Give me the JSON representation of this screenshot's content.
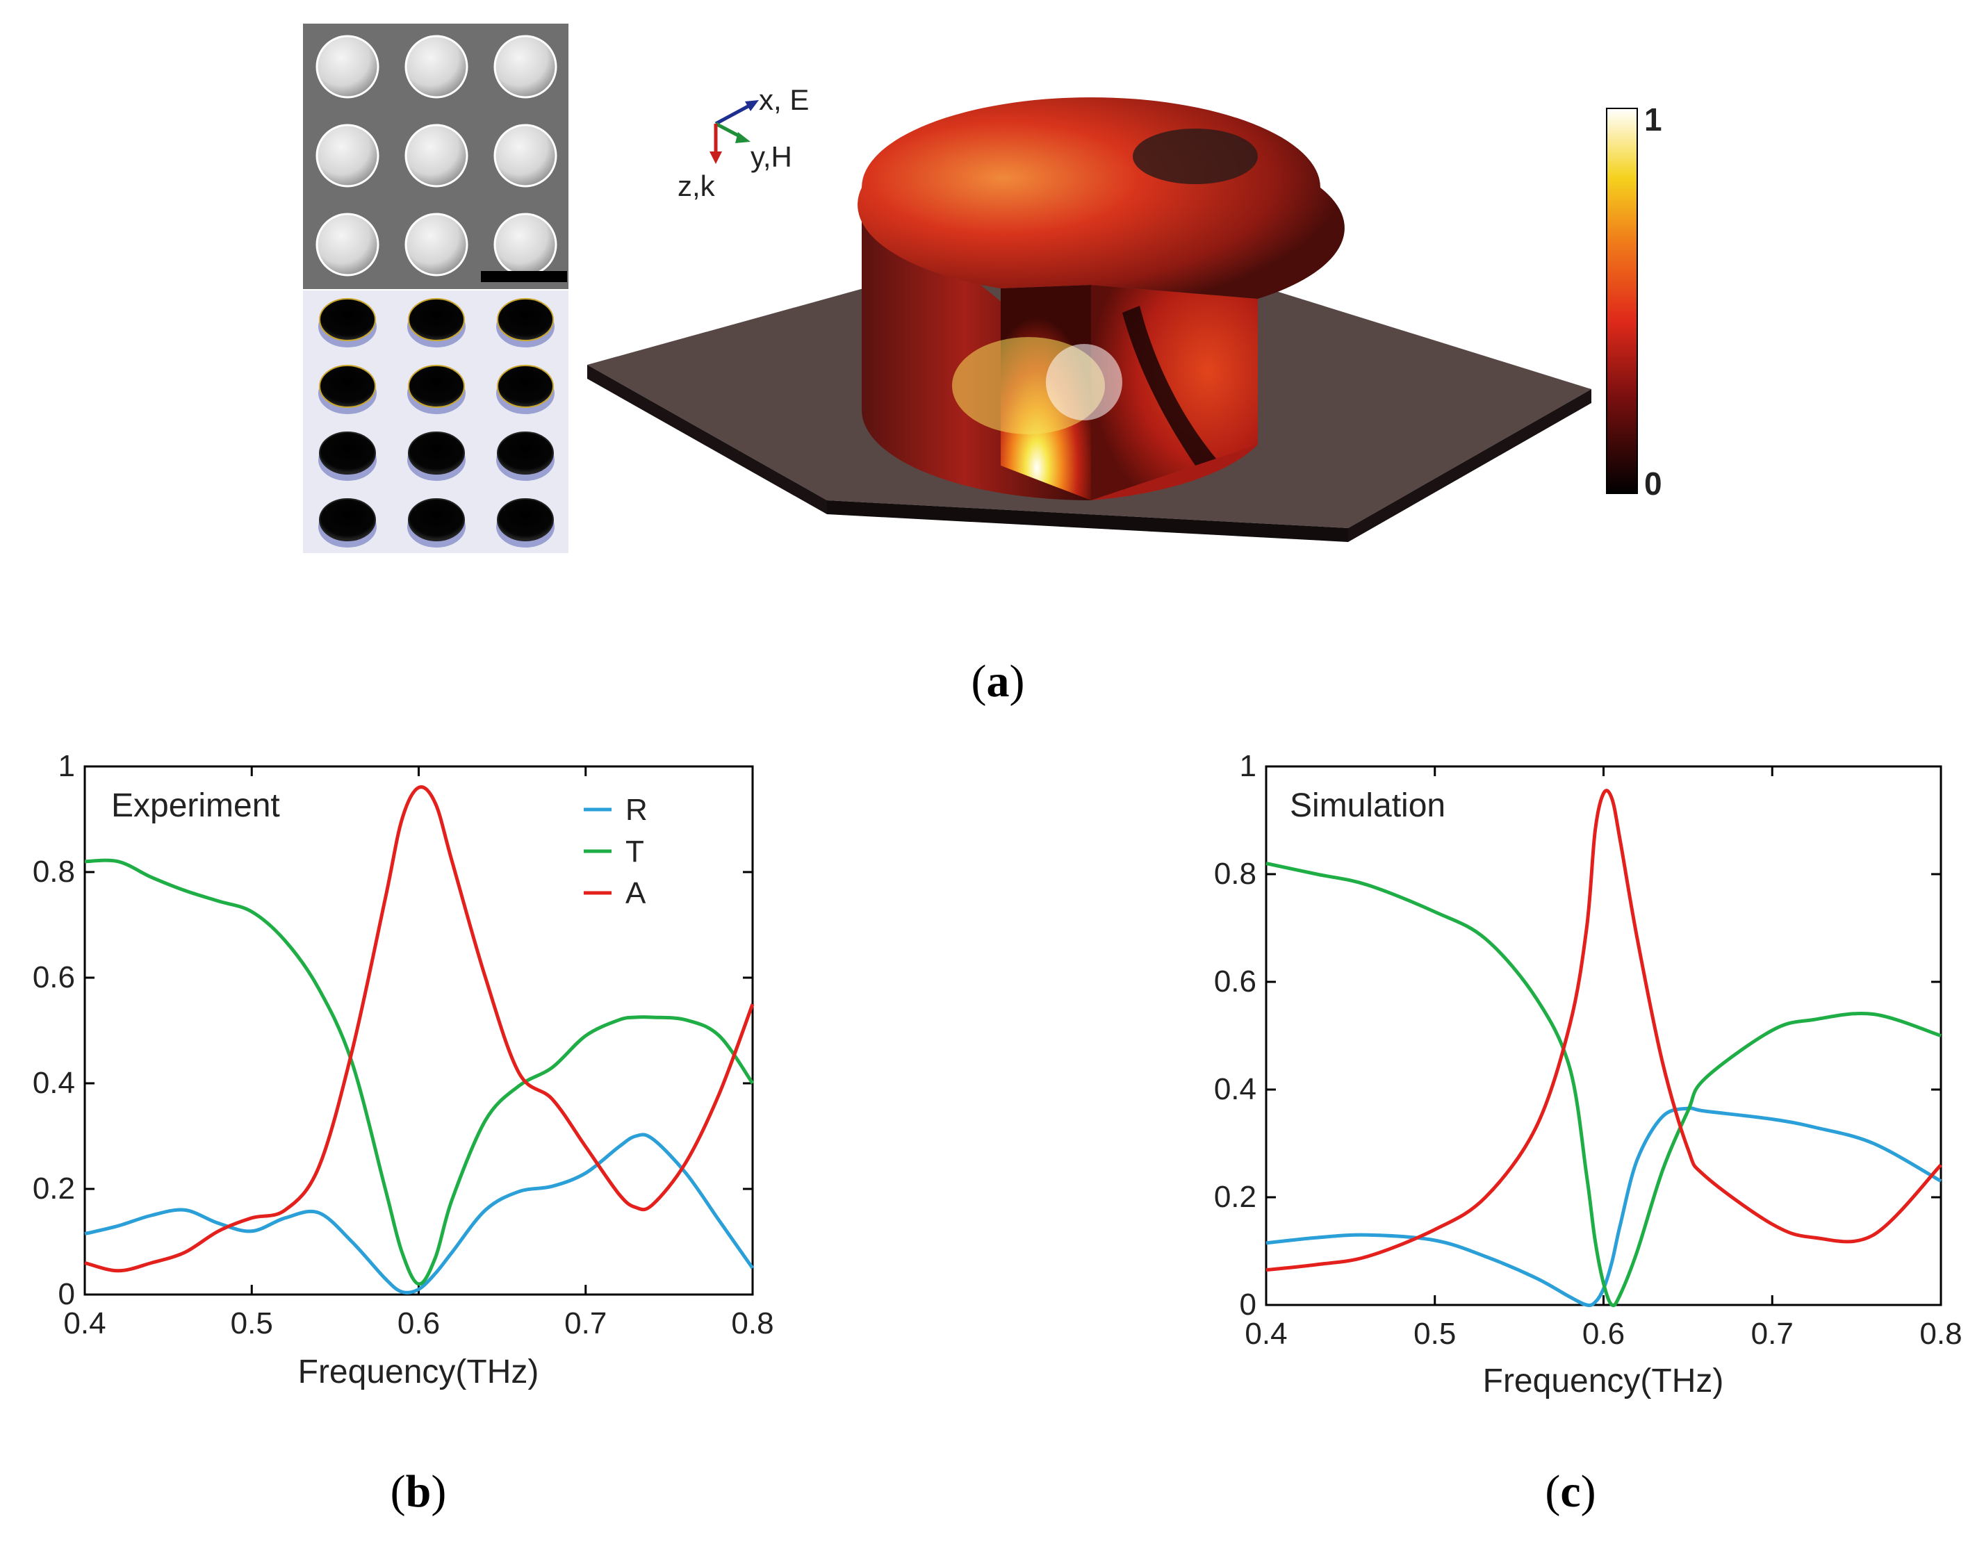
{
  "panel_labels": {
    "a": "(a)",
    "b": "(b)",
    "c": "(c)"
  },
  "label_letters": {
    "a": "a",
    "b": "b",
    "c": "c"
  },
  "figure_a": {
    "axes_labels": {
      "x": "x, E",
      "y": "y,H",
      "z": "z,k"
    },
    "colorbar": {
      "max_label": "1",
      "min_label": "0"
    },
    "colors": {
      "x_axis": "#1f2f8f",
      "y_axis": "#1f8f3a",
      "z_axis": "#c81e1e"
    }
  },
  "colors": {
    "R": "#2a9fd8",
    "T": "#1fae46",
    "A": "#e3201b"
  },
  "chart_data": [
    {
      "type": "line",
      "title": "Experiment",
      "xlabel": "Frequency(THz)",
      "ylabel": "",
      "xlim": [
        0.4,
        0.8
      ],
      "ylim": [
        0,
        1
      ],
      "xticks": [
        "0.4",
        "0.5",
        "0.6",
        "0.7",
        "0.8"
      ],
      "yticks": [
        "0",
        "0.2",
        "0.4",
        "0.6",
        "0.8",
        "1"
      ],
      "legend": [
        "R",
        "T",
        "A"
      ],
      "legend_position": "top-right",
      "x": [
        0.4,
        0.42,
        0.44,
        0.46,
        0.48,
        0.5,
        0.52,
        0.54,
        0.56,
        0.58,
        0.59,
        0.6,
        0.61,
        0.62,
        0.64,
        0.66,
        0.68,
        0.7,
        0.72,
        0.73,
        0.74,
        0.76,
        0.78,
        0.8
      ],
      "series": [
        {
          "name": "R",
          "values": [
            0.115,
            0.13,
            0.15,
            0.16,
            0.135,
            0.12,
            0.145,
            0.155,
            0.1,
            0.03,
            0.005,
            0.01,
            0.04,
            0.08,
            0.16,
            0.195,
            0.205,
            0.23,
            0.28,
            0.3,
            0.295,
            0.23,
            0.14,
            0.05
          ]
        },
        {
          "name": "T",
          "values": [
            0.82,
            0.82,
            0.79,
            0.765,
            0.745,
            0.725,
            0.67,
            0.58,
            0.44,
            0.2,
            0.08,
            0.02,
            0.07,
            0.18,
            0.33,
            0.395,
            0.43,
            0.49,
            0.52,
            0.525,
            0.525,
            0.52,
            0.49,
            0.4
          ]
        },
        {
          "name": "A",
          "values": [
            0.06,
            0.045,
            0.06,
            0.08,
            0.12,
            0.145,
            0.16,
            0.24,
            0.46,
            0.75,
            0.9,
            0.96,
            0.93,
            0.82,
            0.6,
            0.42,
            0.37,
            0.28,
            0.19,
            0.165,
            0.17,
            0.25,
            0.38,
            0.55
          ]
        }
      ]
    },
    {
      "type": "line",
      "title": "Simulation",
      "xlabel": "Frequency(THz)",
      "ylabel": "",
      "xlim": [
        0.4,
        0.8
      ],
      "ylim": [
        0,
        1
      ],
      "xticks": [
        "0.4",
        "0.5",
        "0.6",
        "0.7",
        "0.8"
      ],
      "yticks": [
        "0",
        "0.2",
        "0.4",
        "0.6",
        "0.8",
        "1"
      ],
      "legend": [],
      "x": [
        0.4,
        0.43,
        0.46,
        0.5,
        0.53,
        0.56,
        0.58,
        0.59,
        0.595,
        0.6,
        0.605,
        0.61,
        0.62,
        0.635,
        0.65,
        0.66,
        0.7,
        0.725,
        0.76,
        0.8
      ],
      "series": [
        {
          "name": "R",
          "values": [
            0.115,
            0.125,
            0.13,
            0.12,
            0.09,
            0.05,
            0.015,
            0.0,
            0.005,
            0.03,
            0.08,
            0.15,
            0.27,
            0.35,
            0.365,
            0.36,
            0.345,
            0.33,
            0.3,
            0.23
          ]
        },
        {
          "name": "T",
          "values": [
            0.82,
            0.8,
            0.78,
            0.73,
            0.68,
            0.57,
            0.44,
            0.24,
            0.12,
            0.04,
            0.0,
            0.02,
            0.1,
            0.25,
            0.36,
            0.42,
            0.51,
            0.53,
            0.54,
            0.5
          ]
        },
        {
          "name": "A",
          "values": [
            0.065,
            0.075,
            0.09,
            0.14,
            0.2,
            0.33,
            0.52,
            0.7,
            0.88,
            0.95,
            0.94,
            0.86,
            0.68,
            0.45,
            0.29,
            0.24,
            0.15,
            0.125,
            0.13,
            0.26
          ]
        }
      ]
    }
  ]
}
